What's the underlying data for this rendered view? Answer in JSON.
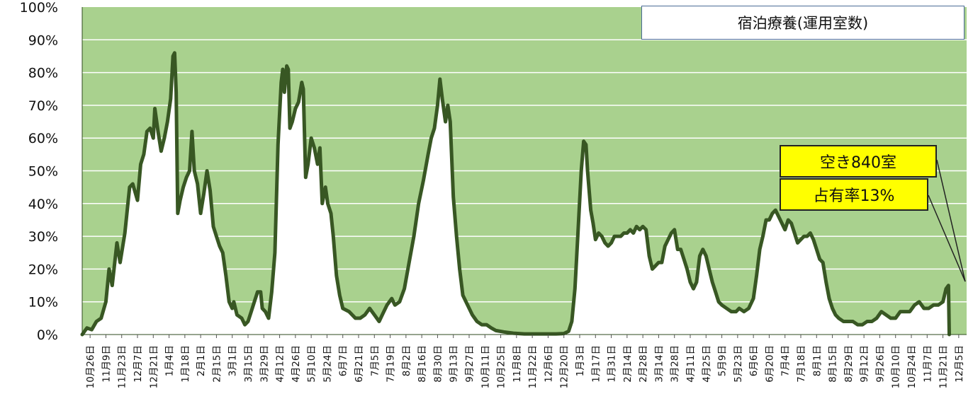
{
  "chart_data": {
    "type": "area",
    "title": "宿泊療養(運用室数)",
    "ylim": [
      0,
      100
    ],
    "y_ticks": [
      "0%",
      "10%",
      "20%",
      "30%",
      "40%",
      "50%",
      "60%",
      "70%",
      "80%",
      "90%",
      "100%"
    ],
    "x_tick_labels": [
      "10月26日",
      "11月9日",
      "11月23日",
      "12月7日",
      "12月21日",
      "1月4日",
      "1月18日",
      "2月1日",
      "2月15日",
      "3月1日",
      "3月15日",
      "3月29日",
      "4月12日",
      "4月26日",
      "5月10日",
      "5月24日",
      "6月7日",
      "6月21日",
      "7月5日",
      "7月19日",
      "8月2日",
      "8月16日",
      "8月30日",
      "9月13日",
      "9月27日",
      "10月11日",
      "10月25日",
      "11月8日",
      "11月22日",
      "12月6日",
      "12月20日",
      "1月3日",
      "1月17日",
      "1月31日",
      "2月14日",
      "2月28日",
      "3月14日",
      "3月28日",
      "4月11日",
      "4月25日",
      "5月9日",
      "5月23日",
      "6月6日",
      "6月20日",
      "7月4日",
      "7月18日",
      "8月1日",
      "8月15日",
      "8月29日",
      "9月12日",
      "9月26日",
      "10月10日",
      "10月24日",
      "11月7日",
      "11月21日",
      "12月5日"
    ],
    "series": [
      {
        "values": [
          [
            0,
            0
          ],
          [
            0.3,
            2
          ],
          [
            0.6,
            1.5
          ],
          [
            0.9,
            4
          ],
          [
            1.2,
            5
          ],
          [
            1.5,
            10
          ],
          [
            1.7,
            20
          ],
          [
            1.9,
            15
          ],
          [
            2.2,
            28
          ],
          [
            2.4,
            22
          ],
          [
            2.7,
            31
          ],
          [
            3.0,
            45
          ],
          [
            3.2,
            46
          ],
          [
            3.5,
            41
          ],
          [
            3.7,
            52
          ],
          [
            3.9,
            55
          ],
          [
            4.1,
            62
          ],
          [
            4.3,
            63
          ],
          [
            4.5,
            60
          ],
          [
            4.6,
            69
          ],
          [
            4.8,
            62
          ],
          [
            5.0,
            56
          ],
          [
            5.2,
            60
          ],
          [
            5.4,
            65
          ],
          [
            5.6,
            72
          ],
          [
            5.75,
            85
          ],
          [
            5.85,
            86
          ],
          [
            5.95,
            74
          ],
          [
            6.05,
            37
          ],
          [
            6.2,
            41
          ],
          [
            6.4,
            45
          ],
          [
            6.6,
            48
          ],
          [
            6.8,
            50
          ],
          [
            6.95,
            62
          ],
          [
            7.1,
            50
          ],
          [
            7.3,
            46
          ],
          [
            7.5,
            37
          ],
          [
            7.7,
            43
          ],
          [
            7.9,
            50
          ],
          [
            8.1,
            44
          ],
          [
            8.3,
            33
          ],
          [
            8.5,
            30
          ],
          [
            8.7,
            27
          ],
          [
            8.9,
            25
          ],
          [
            9.1,
            18
          ],
          [
            9.3,
            10
          ],
          [
            9.5,
            8
          ],
          [
            9.6,
            10
          ],
          [
            9.8,
            6
          ],
          [
            10.1,
            5
          ],
          [
            10.3,
            3
          ],
          [
            10.5,
            4
          ],
          [
            10.7,
            7
          ],
          [
            10.9,
            10
          ],
          [
            11.1,
            13
          ],
          [
            11.3,
            13
          ],
          [
            11.4,
            8
          ],
          [
            11.6,
            7
          ],
          [
            11.8,
            5
          ],
          [
            12.0,
            13
          ],
          [
            12.2,
            25
          ],
          [
            12.4,
            58
          ],
          [
            12.6,
            77
          ],
          [
            12.7,
            81
          ],
          [
            12.8,
            74
          ],
          [
            12.95,
            82
          ],
          [
            13.05,
            81
          ],
          [
            13.15,
            63
          ],
          [
            13.3,
            65
          ],
          [
            13.5,
            69
          ],
          [
            13.7,
            71
          ],
          [
            13.9,
            77
          ],
          [
            14.0,
            75
          ],
          [
            14.15,
            48
          ],
          [
            14.3,
            52
          ],
          [
            14.5,
            60
          ],
          [
            14.7,
            57
          ],
          [
            14.9,
            52
          ],
          [
            15.05,
            57
          ],
          [
            15.2,
            40
          ],
          [
            15.4,
            45
          ],
          [
            15.55,
            40
          ],
          [
            15.75,
            37
          ],
          [
            15.9,
            30
          ],
          [
            16.1,
            18
          ],
          [
            16.3,
            12
          ],
          [
            16.5,
            8
          ],
          [
            16.9,
            7
          ],
          [
            17.3,
            5
          ],
          [
            17.6,
            5
          ],
          [
            17.9,
            6
          ],
          [
            18.2,
            8
          ],
          [
            18.5,
            6
          ],
          [
            18.8,
            4
          ],
          [
            19.0,
            6
          ],
          [
            19.3,
            9
          ],
          [
            19.6,
            11
          ],
          [
            19.8,
            9
          ],
          [
            20.1,
            10
          ],
          [
            20.4,
            14
          ],
          [
            20.7,
            22
          ],
          [
            21.0,
            30
          ],
          [
            21.3,
            40
          ],
          [
            21.6,
            47
          ],
          [
            21.9,
            55
          ],
          [
            22.1,
            60
          ],
          [
            22.3,
            63
          ],
          [
            22.5,
            70
          ],
          [
            22.65,
            78
          ],
          [
            22.8,
            72
          ],
          [
            23.0,
            65
          ],
          [
            23.15,
            70
          ],
          [
            23.3,
            65
          ],
          [
            23.5,
            42
          ],
          [
            23.7,
            30
          ],
          [
            23.9,
            20
          ],
          [
            24.1,
            12
          ],
          [
            24.4,
            9
          ],
          [
            24.7,
            6
          ],
          [
            25.0,
            4
          ],
          [
            25.3,
            3
          ],
          [
            25.6,
            3
          ],
          [
            25.9,
            2
          ],
          [
            26.2,
            1.2
          ],
          [
            26.7,
            0.8
          ],
          [
            27.3,
            0.4
          ],
          [
            28.0,
            0.2
          ],
          [
            29.0,
            0.2
          ],
          [
            30.0,
            0.2
          ],
          [
            30.5,
            0.3
          ],
          [
            30.8,
            1
          ],
          [
            31.0,
            4
          ],
          [
            31.2,
            14
          ],
          [
            31.4,
            32
          ],
          [
            31.6,
            50
          ],
          [
            31.75,
            59
          ],
          [
            31.9,
            58
          ],
          [
            32.0,
            50
          ],
          [
            32.2,
            38
          ],
          [
            32.35,
            34
          ],
          [
            32.5,
            29
          ],
          [
            32.7,
            31
          ],
          [
            32.9,
            30
          ],
          [
            33.1,
            28
          ],
          [
            33.3,
            27
          ],
          [
            33.5,
            28
          ],
          [
            33.7,
            30
          ],
          [
            33.9,
            30
          ],
          [
            34.1,
            30
          ],
          [
            34.3,
            31
          ],
          [
            34.5,
            31
          ],
          [
            34.7,
            32
          ],
          [
            34.9,
            31
          ],
          [
            35.1,
            33
          ],
          [
            35.3,
            32
          ],
          [
            35.5,
            33
          ],
          [
            35.7,
            32
          ],
          [
            35.9,
            24
          ],
          [
            36.1,
            20
          ],
          [
            36.3,
            21
          ],
          [
            36.5,
            22
          ],
          [
            36.7,
            22
          ],
          [
            36.9,
            27
          ],
          [
            37.1,
            29
          ],
          [
            37.3,
            31
          ],
          [
            37.5,
            32
          ],
          [
            37.7,
            26
          ],
          [
            37.9,
            26
          ],
          [
            38.1,
            23
          ],
          [
            38.3,
            20
          ],
          [
            38.5,
            16
          ],
          [
            38.7,
            14
          ],
          [
            38.9,
            16
          ],
          [
            39.1,
            24
          ],
          [
            39.3,
            26
          ],
          [
            39.5,
            24
          ],
          [
            39.7,
            20
          ],
          [
            39.9,
            16
          ],
          [
            40.1,
            13
          ],
          [
            40.3,
            10
          ],
          [
            40.5,
            9
          ],
          [
            40.8,
            8
          ],
          [
            41.1,
            7
          ],
          [
            41.4,
            7
          ],
          [
            41.6,
            8
          ],
          [
            41.9,
            7
          ],
          [
            42.2,
            8
          ],
          [
            42.5,
            11
          ],
          [
            42.7,
            18
          ],
          [
            42.9,
            26
          ],
          [
            43.1,
            30
          ],
          [
            43.3,
            35
          ],
          [
            43.5,
            35
          ],
          [
            43.7,
            37
          ],
          [
            43.9,
            38
          ],
          [
            44.1,
            36
          ],
          [
            44.3,
            34
          ],
          [
            44.5,
            32
          ],
          [
            44.7,
            35
          ],
          [
            44.9,
            34
          ],
          [
            45.1,
            31
          ],
          [
            45.3,
            28
          ],
          [
            45.5,
            29
          ],
          [
            45.7,
            30
          ],
          [
            45.9,
            30
          ],
          [
            46.1,
            31
          ],
          [
            46.3,
            29
          ],
          [
            46.5,
            26
          ],
          [
            46.7,
            23
          ],
          [
            46.9,
            22
          ],
          [
            47.1,
            16
          ],
          [
            47.3,
            11
          ],
          [
            47.5,
            8
          ],
          [
            47.7,
            6
          ],
          [
            47.9,
            5
          ],
          [
            48.2,
            4
          ],
          [
            48.5,
            4
          ],
          [
            48.8,
            4
          ],
          [
            49.1,
            3
          ],
          [
            49.4,
            3
          ],
          [
            49.7,
            4
          ],
          [
            50.0,
            4
          ],
          [
            50.3,
            5
          ],
          [
            50.6,
            7
          ],
          [
            50.9,
            6
          ],
          [
            51.2,
            5
          ],
          [
            51.5,
            5
          ],
          [
            51.8,
            7
          ],
          [
            52.1,
            7
          ],
          [
            52.4,
            7
          ],
          [
            52.7,
            9
          ],
          [
            53.0,
            10
          ],
          [
            53.3,
            8
          ],
          [
            53.6,
            8
          ],
          [
            53.9,
            9
          ],
          [
            54.2,
            9
          ],
          [
            54.5,
            10
          ],
          [
            54.7,
            14
          ],
          [
            54.85,
            15
          ],
          [
            54.9,
            0
          ]
        ]
      }
    ],
    "annotations": [
      "空き840室",
      "占有率13%"
    ],
    "colors": {
      "plot_background": "#a9d18e",
      "line": "#385723",
      "fill": "#ffffff",
      "callout": "#ffff00"
    },
    "grid": true,
    "legend": "none"
  }
}
